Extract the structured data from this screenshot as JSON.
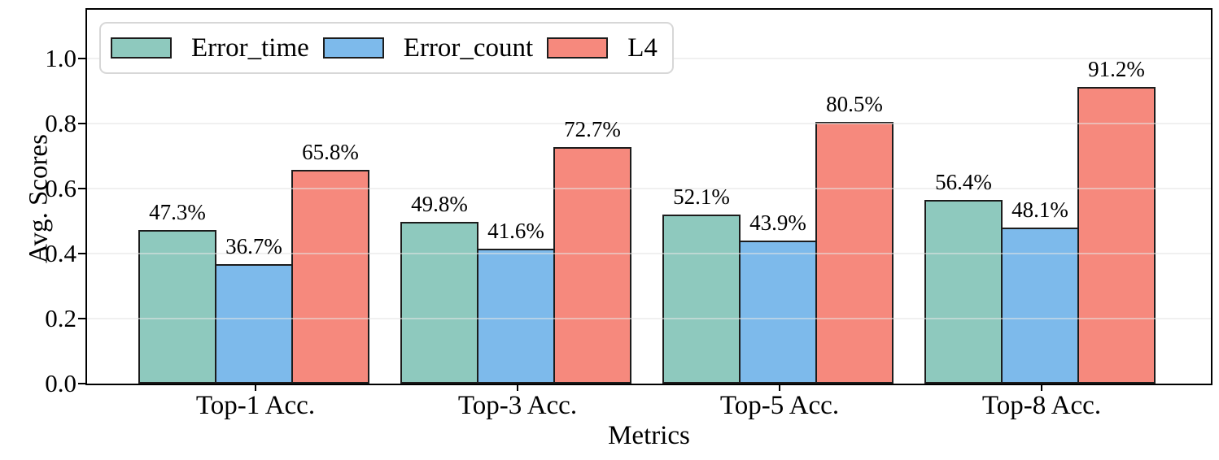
{
  "chart_data": {
    "type": "bar",
    "title": "",
    "xlabel": "Metrics",
    "ylabel": "Avg. Scores",
    "categories": [
      "Top-1 Acc.",
      "Top-3 Acc.",
      "Top-5 Acc.",
      "Top-8 Acc."
    ],
    "series": [
      {
        "name": "Error_time",
        "color": "#8EC9BE",
        "values": [
          0.473,
          0.498,
          0.521,
          0.564
        ],
        "labels": [
          "47.3%",
          "49.8%",
          "52.1%",
          "56.4%"
        ]
      },
      {
        "name": "Error_count",
        "color": "#7DBAEB",
        "values": [
          0.367,
          0.416,
          0.439,
          0.481
        ],
        "labels": [
          "36.7%",
          "41.6%",
          "43.9%",
          "48.1%"
        ]
      },
      {
        "name": "L4",
        "color": "#F6897D",
        "values": [
          0.658,
          0.727,
          0.805,
          0.912
        ],
        "labels": [
          "65.8%",
          "72.7%",
          "80.5%",
          "91.2%"
        ]
      }
    ],
    "yticks": [
      0.0,
      0.2,
      0.4,
      0.6,
      0.8,
      1.0
    ],
    "ytick_labels": [
      "0.0",
      "0.2",
      "0.4",
      "0.6",
      "0.8",
      "1.0"
    ],
    "ylim": [
      0,
      1.16
    ],
    "grid": true,
    "grid_color": "#e4e4e4",
    "legend_position": "upper left",
    "bar_edge_color": "#1c1c1c"
  }
}
